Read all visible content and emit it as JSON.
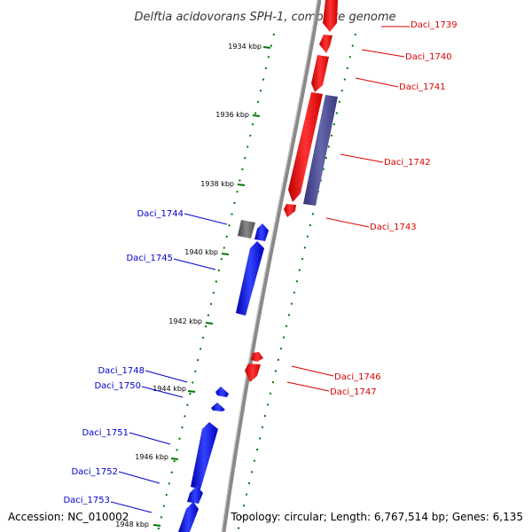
{
  "title": "Delftia acidovorans SPH-1, complete genome",
  "footer": {
    "accession": "Accession: NC_010002",
    "topology": "Topology: circular; Length: 6,767,514 bp; Genes: 6,135"
  },
  "colors": {
    "backbone": "#888888",
    "forward_gene": "#ff0000",
    "reverse_gene": "#0000ff",
    "other_feature": "#555599",
    "pseudo_gene": "#666666",
    "tick_dots": "#007700",
    "forward_label": "#dd0000",
    "reverse_label": "#0000cc"
  },
  "kbp_ticks": [
    "1934 kbp",
    "1936 kbp",
    "1938 kbp",
    "1940 kbp",
    "1942 kbp",
    "1944 kbp",
    "1946 kbp",
    "1948 kbp"
  ],
  "forward_labels": [
    "Daci_1739",
    "Daci_1740",
    "Daci_1741",
    "Daci_1742",
    "Daci_1743",
    "Daci_1746",
    "Daci_1747"
  ],
  "reverse_labels": [
    "Daci_1744",
    "Daci_1745",
    "Daci_1748",
    "Daci_1750",
    "Daci_1751",
    "Daci_1752",
    "Daci_1753"
  ]
}
